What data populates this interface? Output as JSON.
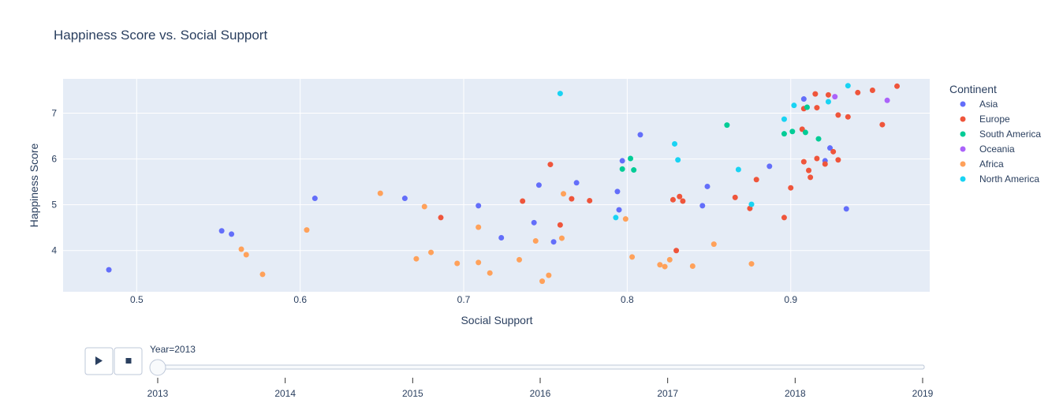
{
  "chart_data": {
    "type": "scatter",
    "title": "Happiness Score vs. Social Support",
    "xlabel": "Social Support",
    "ylabel": "Happiness Score",
    "xlim": [
      0.455,
      0.985
    ],
    "ylim": [
      3.1,
      7.75
    ],
    "x_ticks": [
      0.5,
      0.6,
      0.7,
      0.8,
      0.9
    ],
    "x_tick_labels": [
      "0.5",
      "0.6",
      "0.7",
      "0.8",
      "0.9"
    ],
    "y_ticks": [
      4,
      5,
      6,
      7
    ],
    "y_tick_labels": [
      "4",
      "5",
      "6",
      "7"
    ],
    "grid": true,
    "legend": {
      "title": "Continent",
      "placement": "right"
    },
    "series": [
      {
        "name": "Asia",
        "color": "#636efa",
        "points": [
          [
            0.483,
            3.58
          ],
          [
            0.552,
            4.43
          ],
          [
            0.558,
            4.36
          ],
          [
            0.609,
            5.14
          ],
          [
            0.664,
            5.14
          ],
          [
            0.709,
            4.98
          ],
          [
            0.723,
            4.28
          ],
          [
            0.743,
            4.61
          ],
          [
            0.746,
            5.43
          ],
          [
            0.755,
            4.19
          ],
          [
            0.769,
            5.48
          ],
          [
            0.794,
            5.29
          ],
          [
            0.795,
            4.89
          ],
          [
            0.797,
            5.96
          ],
          [
            0.808,
            6.53
          ],
          [
            0.846,
            4.98
          ],
          [
            0.849,
            5.4
          ],
          [
            0.887,
            5.84
          ],
          [
            0.908,
            7.31
          ],
          [
            0.921,
            5.96
          ],
          [
            0.924,
            6.24
          ],
          [
            0.934,
            4.91
          ]
        ]
      },
      {
        "name": "Europe",
        "color": "#ef553b",
        "points": [
          [
            0.686,
            4.72
          ],
          [
            0.736,
            5.08
          ],
          [
            0.753,
            5.88
          ],
          [
            0.759,
            4.56
          ],
          [
            0.766,
            5.13
          ],
          [
            0.777,
            5.09
          ],
          [
            0.828,
            5.11
          ],
          [
            0.83,
            4.0
          ],
          [
            0.832,
            5.18
          ],
          [
            0.834,
            5.08
          ],
          [
            0.866,
            5.16
          ],
          [
            0.875,
            4.92
          ],
          [
            0.879,
            5.55
          ],
          [
            0.896,
            4.72
          ],
          [
            0.9,
            5.37
          ],
          [
            0.907,
            6.65
          ],
          [
            0.908,
            5.94
          ],
          [
            0.908,
            7.1
          ],
          [
            0.911,
            5.75
          ],
          [
            0.912,
            5.6
          ],
          [
            0.915,
            7.42
          ],
          [
            0.916,
            6.01
          ],
          [
            0.916,
            7.12
          ],
          [
            0.921,
            5.89
          ],
          [
            0.923,
            7.4
          ],
          [
            0.926,
            6.16
          ],
          [
            0.929,
            5.98
          ],
          [
            0.929,
            6.96
          ],
          [
            0.935,
            6.92
          ],
          [
            0.941,
            7.45
          ],
          [
            0.95,
            7.5
          ],
          [
            0.956,
            6.75
          ],
          [
            0.965,
            7.59
          ]
        ]
      },
      {
        "name": "South America",
        "color": "#00cc96",
        "points": [
          [
            0.797,
            5.78
          ],
          [
            0.802,
            6.01
          ],
          [
            0.804,
            5.76
          ],
          [
            0.861,
            6.74
          ],
          [
            0.896,
            6.55
          ],
          [
            0.901,
            6.6
          ],
          [
            0.909,
            6.58
          ],
          [
            0.91,
            7.13
          ],
          [
            0.917,
            6.44
          ]
        ]
      },
      {
        "name": "Oceania",
        "color": "#ab63fa",
        "points": [
          [
            0.927,
            7.36
          ],
          [
            0.959,
            7.28
          ]
        ]
      },
      {
        "name": "Africa",
        "color": "#ffa15a",
        "points": [
          [
            0.564,
            4.03
          ],
          [
            0.567,
            3.91
          ],
          [
            0.577,
            3.48
          ],
          [
            0.604,
            4.45
          ],
          [
            0.649,
            5.25
          ],
          [
            0.671,
            3.82
          ],
          [
            0.676,
            4.96
          ],
          [
            0.68,
            3.96
          ],
          [
            0.696,
            3.72
          ],
          [
            0.709,
            4.51
          ],
          [
            0.709,
            3.74
          ],
          [
            0.716,
            3.51
          ],
          [
            0.734,
            3.8
          ],
          [
            0.744,
            4.21
          ],
          [
            0.748,
            3.33
          ],
          [
            0.752,
            3.46
          ],
          [
            0.76,
            4.27
          ],
          [
            0.761,
            5.24
          ],
          [
            0.799,
            4.69
          ],
          [
            0.803,
            3.86
          ],
          [
            0.82,
            3.69
          ],
          [
            0.823,
            3.65
          ],
          [
            0.826,
            3.8
          ],
          [
            0.84,
            3.66
          ],
          [
            0.853,
            4.14
          ],
          [
            0.876,
            3.71
          ]
        ]
      },
      {
        "name": "North America",
        "color": "#19d3f3",
        "points": [
          [
            0.759,
            7.43
          ],
          [
            0.793,
            4.72
          ],
          [
            0.829,
            6.33
          ],
          [
            0.831,
            5.98
          ],
          [
            0.868,
            5.77
          ],
          [
            0.876,
            5.01
          ],
          [
            0.896,
            6.87
          ],
          [
            0.902,
            7.17
          ],
          [
            0.923,
            7.25
          ],
          [
            0.935,
            7.6
          ]
        ]
      }
    ]
  },
  "slider": {
    "current_label": "Year=2013",
    "current_value": 2013,
    "range": [
      2013,
      2019
    ],
    "steps": [
      "2013",
      "2014",
      "2015",
      "2016",
      "2017",
      "2018",
      "2019"
    ]
  },
  "controls": {
    "play_icon": "play-icon",
    "stop_icon": "stop-icon"
  },
  "colors": {
    "plot_bg": "#e5ecf6",
    "grid": "#ffffff",
    "text": "#2a3f5f"
  }
}
